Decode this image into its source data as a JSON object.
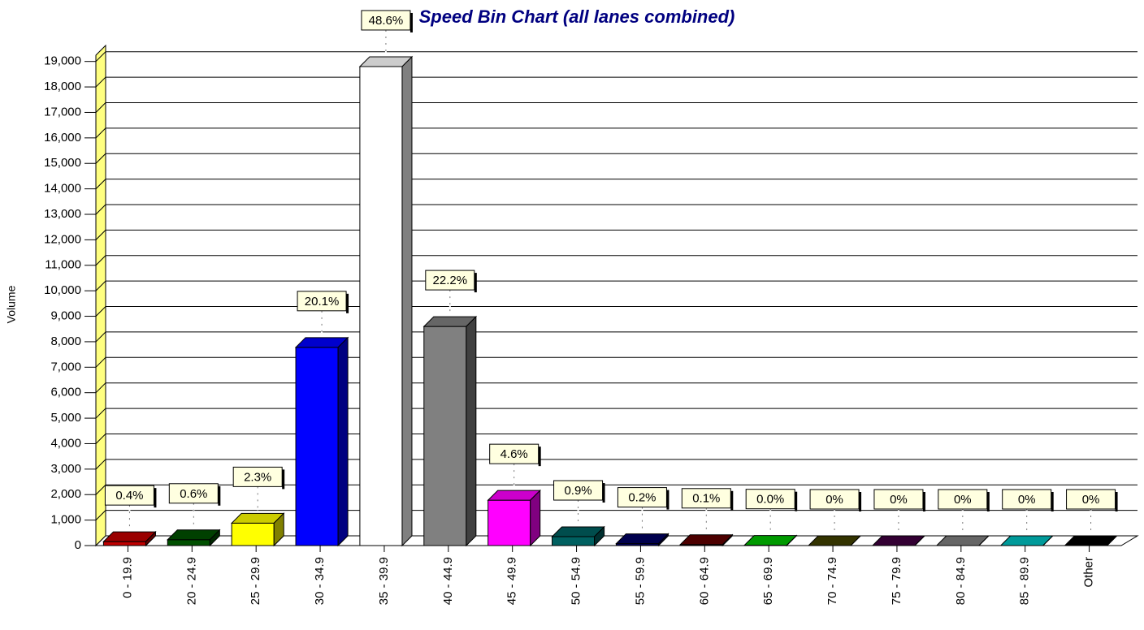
{
  "chart_data": {
    "type": "bar3d",
    "title": "Speed Bin Chart (all lanes combined)",
    "ylabel": "Volume",
    "categories": [
      "0 - 19.9",
      "20 - 24.9",
      "25 - 29.9",
      "30 - 34.9",
      "35 - 39.9",
      "40 - 44.9",
      "45 - 49.9",
      "50 - 54.9",
      "55 - 59.9",
      "60 - 64.9",
      "65 - 69.9",
      "70 - 74.9",
      "75 - 79.9",
      "80 - 84.9",
      "85 - 89.9",
      "Other"
    ],
    "values": [
      155,
      230,
      880,
      7780,
      18800,
      8600,
      1780,
      350,
      77,
      39,
      10,
      0,
      0,
      0,
      0,
      0
    ],
    "colors": [
      "#c00000",
      "#005000",
      "#ffff00",
      "#0000ff",
      "#ffffff",
      "#808080",
      "#ff00ff",
      "#006060",
      "#000060",
      "#600000",
      "#00c000",
      "#404000",
      "#400040",
      "#808080",
      "#00c0c0",
      "#000000"
    ],
    "shares": {
      "values": [
        0.4,
        0.6,
        2.3,
        20.1,
        48.6,
        22.2,
        4.6,
        0.9,
        0.2,
        0.1,
        0.0,
        0,
        0,
        0,
        0,
        0
      ],
      "value_labels": [
        "0.4%",
        "0.6%",
        "2.3%",
        "20.1%",
        "48.6%",
        "22.2%",
        "4.6%",
        "0.9%",
        "0.2%",
        "0.1%",
        "0.0%",
        "0%",
        "0%",
        "0%",
        "0%",
        "0%"
      ]
    },
    "ylim": [
      0,
      19500
    ],
    "yticks": [
      {
        "value": 0,
        "label": "0"
      },
      {
        "value": 1000,
        "label": "1,000"
      },
      {
        "value": 2000,
        "label": "2,000"
      },
      {
        "value": 3000,
        "label": "3,000"
      },
      {
        "value": 4000,
        "label": "4,000"
      },
      {
        "value": 5000,
        "label": "5,000"
      },
      {
        "value": 6000,
        "label": "6,000"
      },
      {
        "value": 7000,
        "label": "7,000"
      },
      {
        "value": 8000,
        "label": "8,000"
      },
      {
        "value": 9000,
        "label": "9,000"
      },
      {
        "value": 10000,
        "label": "10,000"
      },
      {
        "value": 11000,
        "label": "11,000"
      },
      {
        "value": 12000,
        "label": "12,000"
      },
      {
        "value": 13000,
        "label": "13,000"
      },
      {
        "value": 14000,
        "label": "14,000"
      },
      {
        "value": 15000,
        "label": "15,000"
      },
      {
        "value": 16000,
        "label": "16,000"
      },
      {
        "value": 17000,
        "label": "17,000"
      },
      {
        "value": 18000,
        "label": "18,000"
      },
      {
        "value": 19000,
        "label": "19,000"
      }
    ],
    "grid": true
  }
}
